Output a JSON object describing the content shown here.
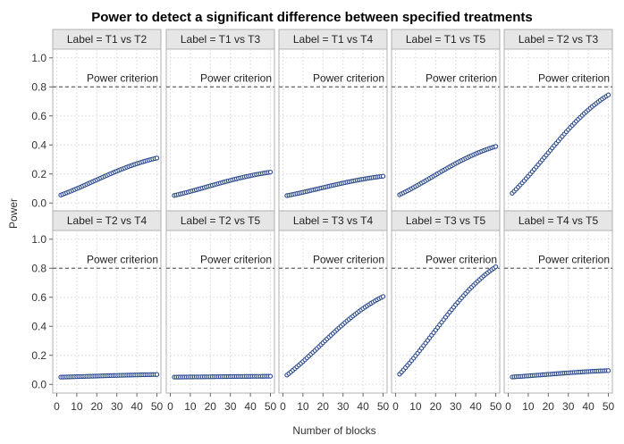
{
  "chart_data": {
    "type": "scatter",
    "title": "Power to detect a significant difference between specified treatments",
    "xlabel": "Number of blocks",
    "ylabel": "Power",
    "xlim": [
      -2,
      52
    ],
    "ylim": [
      -0.06,
      1.06
    ],
    "x_ticks": [
      0,
      10,
      20,
      30,
      40,
      50
    ],
    "y_ticks": [
      0.0,
      0.2,
      0.4,
      0.6,
      0.8,
      1.0
    ],
    "y_tick_labels": [
      "0.0",
      "0.2",
      "0.4",
      "0.6",
      "0.8",
      "1.0"
    ],
    "grid": true,
    "facet_layout": {
      "rows": 2,
      "cols": 5
    },
    "reference_line": {
      "value": 0.8,
      "label": "Power criterion",
      "color": "#666666",
      "style": "dashed"
    },
    "point_color": "#2b4a8c",
    "x_range_points": [
      2,
      50
    ],
    "panels": [
      {
        "label": "Label = T1 vs T2",
        "start": 0.055,
        "end": 0.31
      },
      {
        "label": "Label = T1 vs T3",
        "start": 0.052,
        "end": 0.213
      },
      {
        "label": "Label = T1 vs T4",
        "start": 0.051,
        "end": 0.185
      },
      {
        "label": "Label = T1 vs T5",
        "start": 0.057,
        "end": 0.39
      },
      {
        "label": "Label = T2 vs T3",
        "start": 0.068,
        "end": 0.745
      },
      {
        "label": "Label = T2 vs T4",
        "start": 0.05,
        "end": 0.068
      },
      {
        "label": "Label = T2 vs T5",
        "start": 0.05,
        "end": 0.056
      },
      {
        "label": "Label = T3 vs T4",
        "start": 0.064,
        "end": 0.605
      },
      {
        "label": "Label = T3 vs T5",
        "start": 0.07,
        "end": 0.81
      },
      {
        "label": "Label = T4 vs T5",
        "start": 0.051,
        "end": 0.095
      }
    ]
  }
}
